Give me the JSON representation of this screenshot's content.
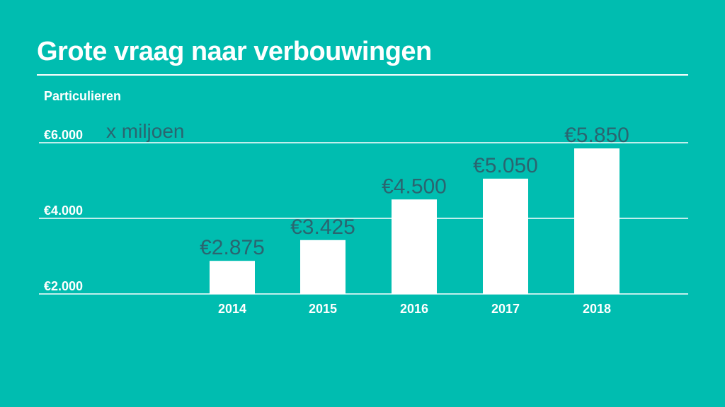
{
  "colors": {
    "background": "#00bdb0",
    "bars": "#ffffff",
    "value_labels": "#2a6570",
    "text": "#ffffff"
  },
  "chart_data": {
    "type": "bar",
    "title": "Grote vraag naar verbouwingen",
    "subtitle": "Particulieren",
    "unit_label": "x miljoen",
    "categories": [
      "2014",
      "2015",
      "2016",
      "2017",
      "2018"
    ],
    "values": [
      2875,
      3425,
      4500,
      5050,
      5850
    ],
    "data_labels": [
      "€2.875",
      "€3.425",
      "€4.500",
      "€5.050",
      "€5.850"
    ],
    "ylim": [
      2000,
      6000
    ],
    "yticks": [
      2000,
      4000,
      6000
    ],
    "ytick_labels": [
      "€2.000",
      "€4.000",
      "€6.000"
    ],
    "grid": true
  }
}
